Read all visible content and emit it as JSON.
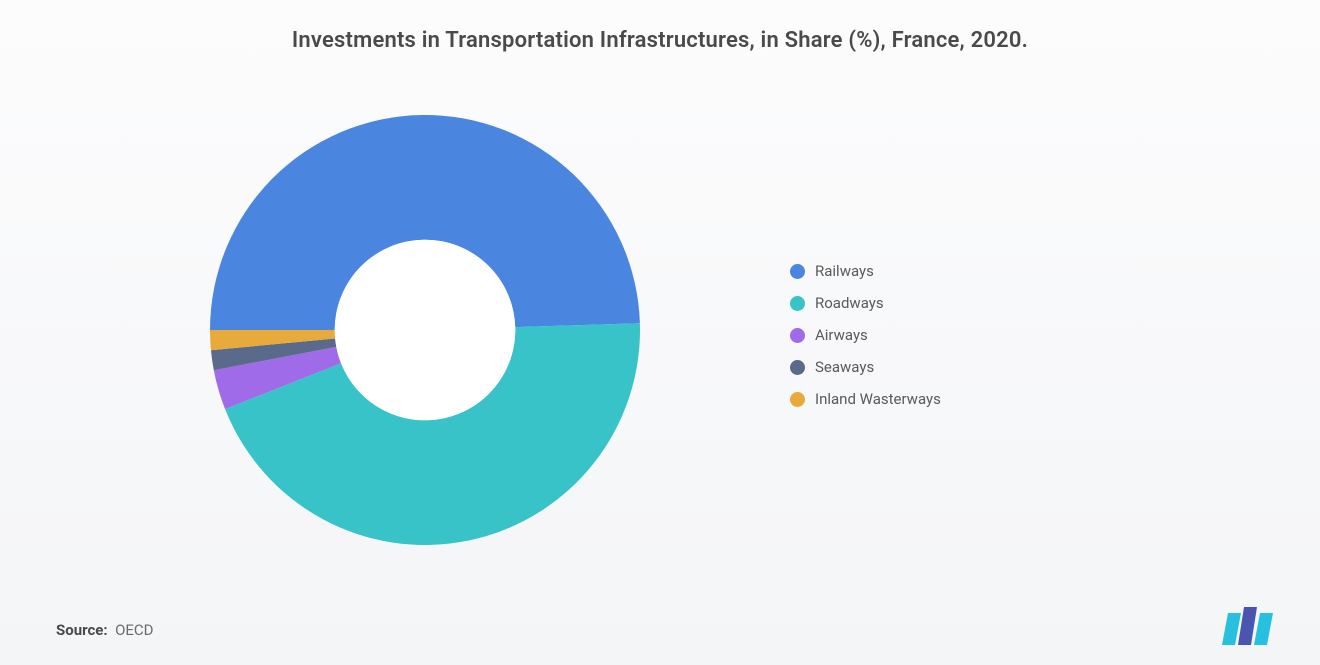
{
  "title": "Investments in Transportation Infrastructures, in Share (%), France, 2020.",
  "chart": {
    "type": "donut",
    "inner_radius_ratio": 0.42,
    "background_color": "#f7f8fa",
    "start_angle_deg": -90,
    "segments": [
      {
        "label": "Railways",
        "value": 49.5,
        "color": "#4a86e0"
      },
      {
        "label": "Roadways",
        "value": 44.5,
        "color": "#38c3c8"
      },
      {
        "label": "Airways",
        "value": 3.0,
        "color": "#a06be8"
      },
      {
        "label": "Seaways",
        "value": 1.5,
        "color": "#5a6a8a"
      },
      {
        "label": "Inland Wasterways",
        "value": 1.5,
        "color": "#e8aa3a"
      }
    ],
    "legend_font_size": 15,
    "legend_text_color": "#5a5a5a",
    "title_font_size": 22,
    "title_color": "#4a4a4a"
  },
  "source": {
    "label": "Source:",
    "value": "OECD"
  },
  "logo": {
    "bars": [
      "#28c0e0",
      "#4a55b0",
      "#28c0e0"
    ]
  }
}
